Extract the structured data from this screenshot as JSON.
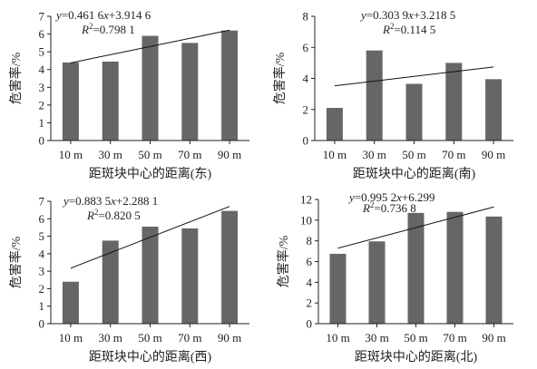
{
  "chart_data": [
    {
      "type": "bar",
      "categories": [
        "10 m",
        "30 m",
        "50 m",
        "70 m",
        "90 m"
      ],
      "values": [
        4.4,
        4.45,
        5.9,
        5.5,
        6.2
      ],
      "xlabel": "距斑块中心的距离(东)",
      "ylabel": "危害率/%",
      "ylim": [
        0,
        7
      ],
      "yticks": [
        0,
        1,
        2,
        3,
        4,
        5,
        6,
        7
      ],
      "trendline": {
        "slope": 0.4616,
        "intercept": 3.9146
      },
      "equation": {
        "y": "y",
        "rest": "=0.461 6",
        "x": "x",
        "tail": "+3.914 6"
      },
      "r2": {
        "label": "R",
        "sup": "2",
        "value": "=0.798 1"
      },
      "bar_color": "#666666"
    },
    {
      "type": "bar",
      "categories": [
        "10 m",
        "30 m",
        "50 m",
        "70 m",
        "90 m"
      ],
      "values": [
        2.1,
        5.8,
        3.65,
        5.0,
        3.95
      ],
      "xlabel": "距斑块中心的距离(南)",
      "ylabel": "危害率/%",
      "ylim": [
        0,
        8
      ],
      "yticks": [
        0,
        2,
        4,
        6,
        8
      ],
      "trendline": {
        "slope": 0.3039,
        "intercept": 3.2185
      },
      "equation": {
        "y": "y",
        "rest": "=0.303 9",
        "x": "x",
        "tail": "+3.218 5"
      },
      "r2": {
        "label": "R",
        "sup": "2",
        "value": "=0.114 5"
      },
      "bar_color": "#666666"
    },
    {
      "type": "bar",
      "categories": [
        "10 m",
        "30 m",
        "50 m",
        "70 m",
        "90 m"
      ],
      "values": [
        2.4,
        4.75,
        5.55,
        5.45,
        6.45
      ],
      "xlabel": "距斑块中心的距离(西)",
      "ylabel": "危害率/%",
      "ylim": [
        0,
        7
      ],
      "yticks": [
        0,
        1,
        2,
        3,
        4,
        5,
        6,
        7
      ],
      "trendline": {
        "slope": 0.8835,
        "intercept": 2.2881
      },
      "equation": {
        "y": "y",
        "rest": "=0.883 5",
        "x": "x",
        "tail": "+2.288 1"
      },
      "r2": {
        "label": "R",
        "sup": "2",
        "value": "=0.820 5"
      },
      "bar_color": "#666666"
    },
    {
      "type": "bar",
      "categories": [
        "10 m",
        "30 m",
        "50 m",
        "70 m",
        "90 m"
      ],
      "values": [
        6.75,
        7.95,
        10.7,
        10.8,
        10.35
      ],
      "xlabel": "距斑块中心的距离(北)",
      "ylabel": "危害率/%",
      "ylim": [
        0,
        12
      ],
      "yticks": [
        0,
        2,
        4,
        6,
        8,
        10,
        12
      ],
      "trendline": {
        "slope": 0.9952,
        "intercept": 6.299
      },
      "equation": {
        "y": "y",
        "rest": "=0.995 2",
        "x": "x",
        "tail": "+6.299"
      },
      "r2": {
        "label": "R",
        "sup": "2",
        "value": "=0.736 8"
      },
      "bar_color": "#666666"
    }
  ]
}
